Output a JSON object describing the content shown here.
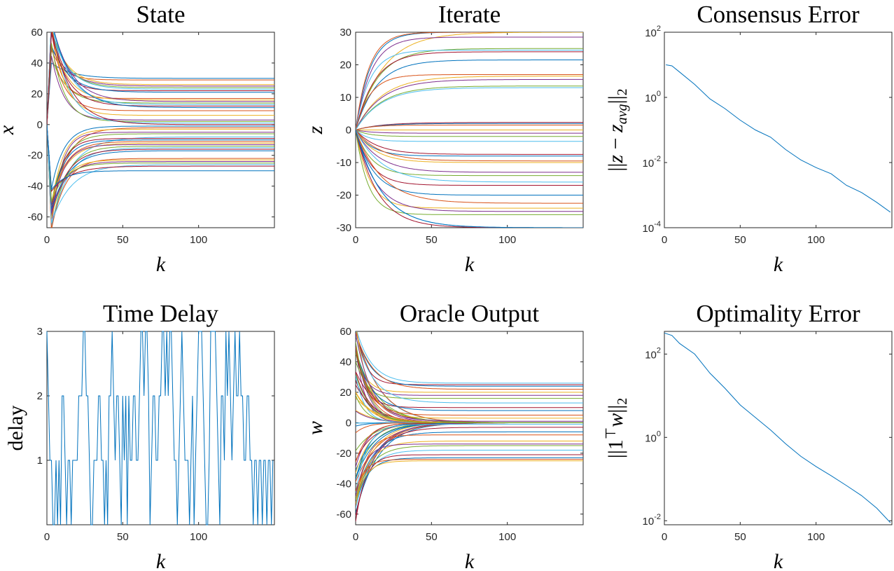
{
  "chart_data": [
    {
      "type": "line",
      "title": "State",
      "xlabel": "k",
      "ylabel": "x",
      "xlim": [
        0,
        150
      ],
      "ylim": [
        -67,
        60
      ],
      "xticks": [
        0,
        50,
        100
      ],
      "yticks": [
        -60,
        -40,
        -20,
        0,
        20,
        40,
        60
      ],
      "ytick_labels": [
        "-60",
        "-40",
        "-20",
        "0",
        "20",
        "40",
        "60"
      ],
      "xtick_labels": [
        "0",
        "50",
        "100"
      ],
      "scale": "linear",
      "x_range": [
        0,
        150
      ],
      "n_series": 60,
      "series_pattern": "trajectories start near 0, spike to ±60 within the first iterations, then settle to constant levels",
      "final_levels": [
        30,
        29,
        26,
        25,
        24,
        23,
        22,
        21,
        17,
        16,
        15,
        14,
        13,
        12,
        11,
        9,
        6,
        3,
        2,
        1,
        0,
        -1,
        -2,
        -3,
        -5,
        -6,
        -8,
        -9,
        -10,
        -11,
        -12,
        -13,
        -14,
        -15,
        -16,
        -17,
        -22,
        -23,
        -24,
        -25,
        -26,
        -27,
        -30
      ]
    },
    {
      "type": "line",
      "title": "Iterate",
      "xlabel": "k",
      "ylabel": "z",
      "xlim": [
        0,
        150
      ],
      "ylim": [
        -30,
        30
      ],
      "xticks": [
        0,
        50,
        100
      ],
      "yticks": [
        -30,
        -20,
        -10,
        0,
        10,
        20,
        30
      ],
      "ytick_labels": [
        "-30",
        "-20",
        "-10",
        "0",
        "10",
        "20",
        "30"
      ],
      "xtick_labels": [
        "0",
        "50",
        "100"
      ],
      "scale": "linear",
      "x_range": [
        0,
        150
      ],
      "series_pattern": "all series start at 0 and converge exponentially to constant levels",
      "final_levels": [
        30,
        30,
        30,
        28.5,
        25,
        24.5,
        24,
        21.5,
        17,
        16.5,
        15.5,
        13.5,
        13,
        2.3,
        2,
        1.5,
        0,
        -1,
        -2,
        -3.5,
        -7.5,
        -8,
        -9.5,
        -10,
        -13,
        -14,
        -16,
        -17,
        -20,
        -22.5,
        -24,
        -25,
        -26,
        -30,
        -30,
        -30
      ]
    },
    {
      "type": "line",
      "title": "Consensus Error",
      "xlabel": "k",
      "ylabel": "||z − z_avg||_2",
      "xlim": [
        0,
        150
      ],
      "ylim": [
        0.0001,
        100
      ],
      "scale": "log",
      "xticks": [
        0,
        50,
        100
      ],
      "xtick_labels": [
        "0",
        "50",
        "100"
      ],
      "ytick_labels": [
        {
          "base": "10",
          "exp": "-4"
        },
        {
          "base": "10",
          "exp": "-2"
        },
        {
          "base": "10",
          "exp": "0"
        },
        {
          "base": "10",
          "exp": "2"
        }
      ],
      "yticks": [
        0.0001,
        0.01,
        1,
        100
      ],
      "x": [
        1,
        5,
        10,
        20,
        30,
        40,
        50,
        60,
        70,
        80,
        90,
        100,
        110,
        120,
        130,
        140,
        149
      ],
      "y": [
        10,
        9.3,
        6,
        2.5,
        0.9,
        0.45,
        0.2,
        0.1,
        0.06,
        0.025,
        0.012,
        0.007,
        0.0045,
        0.002,
        0.0012,
        0.0006,
        0.0003
      ]
    },
    {
      "type": "line",
      "title": "Time Delay",
      "xlabel": "k",
      "ylabel": "delay",
      "xlim": [
        0,
        150
      ],
      "ylim": [
        0,
        3
      ],
      "yticks": [
        1,
        2,
        3
      ],
      "ytick_labels": [
        "1",
        "2",
        "3"
      ],
      "xticks": [
        0,
        50,
        100
      ],
      "xtick_labels": [
        "0",
        "50",
        "100"
      ],
      "scale": "linear",
      "x": [
        0,
        1,
        2,
        3,
        4,
        5,
        6,
        7,
        8,
        9,
        10,
        11,
        12,
        13,
        14,
        15,
        16,
        17,
        18,
        19,
        20,
        21,
        22,
        23,
        24,
        25,
        26,
        27,
        28,
        29,
        30,
        31,
        32,
        33,
        34,
        35,
        36,
        37,
        38,
        39,
        40,
        41,
        42,
        43,
        44,
        45,
        46,
        47,
        48,
        49,
        50,
        51,
        52,
        53,
        54,
        55,
        56,
        57,
        58,
        59,
        60,
        61,
        62,
        63,
        64,
        65,
        66,
        67,
        68,
        69,
        70,
        71,
        72,
        73,
        74,
        75,
        76,
        77,
        78,
        79,
        80,
        81,
        82,
        83,
        84,
        85,
        86,
        87,
        88,
        89,
        90,
        91,
        92,
        93,
        94,
        95,
        96,
        97,
        98,
        99,
        100,
        101,
        102,
        103,
        104,
        105,
        106,
        107,
        108,
        109,
        110,
        111,
        112,
        113,
        114,
        115,
        116,
        117,
        118,
        119,
        120,
        121,
        122,
        123,
        124,
        125,
        126,
        127,
        128,
        129,
        130,
        131,
        132,
        133,
        134,
        135,
        136,
        137,
        138,
        139,
        140,
        141,
        142,
        143,
        144,
        145,
        146,
        147,
        148,
        149
      ],
      "values": [
        3,
        2,
        1,
        1,
        0,
        0,
        1,
        0,
        1,
        0,
        2,
        2,
        1,
        0,
        1,
        1,
        0,
        1,
        1,
        1,
        1,
        2,
        2,
        2,
        3,
        3,
        2,
        2,
        1,
        0,
        0,
        1,
        1,
        1,
        2,
        2,
        1,
        1,
        0,
        1,
        0,
        2,
        2,
        3,
        2,
        1,
        2,
        2,
        1,
        0,
        2,
        1,
        2,
        0,
        2,
        1,
        1,
        2,
        2,
        1,
        1,
        2,
        3,
        3,
        2,
        3,
        3,
        2,
        0,
        1,
        2,
        2,
        1,
        1,
        2,
        2,
        3,
        3,
        2,
        3,
        2,
        3,
        3,
        2,
        1,
        1,
        0,
        1,
        2,
        3,
        2,
        1,
        1,
        1,
        0,
        1,
        2,
        0,
        1,
        2,
        3,
        3,
        3,
        2,
        1,
        0,
        0,
        1,
        3,
        3,
        3,
        3,
        2,
        1,
        0,
        2,
        2,
        1,
        3,
        2,
        3,
        2,
        1,
        2,
        3,
        2,
        2,
        3,
        2,
        2,
        1,
        1,
        2,
        2,
        1,
        1,
        0,
        1,
        1,
        0,
        1,
        1,
        0,
        1,
        1,
        0,
        1,
        1,
        0,
        1
      ]
    },
    {
      "type": "line",
      "title": "Oracle Output",
      "xlabel": "k",
      "ylabel": "w",
      "xlim": [
        0,
        150
      ],
      "ylim": [
        -67,
        60
      ],
      "xticks": [
        0,
        50,
        100
      ],
      "yticks": [
        -60,
        -40,
        -20,
        0,
        20,
        40,
        60
      ],
      "ytick_labels": [
        "-60",
        "-40",
        "-20",
        "0",
        "20",
        "40",
        "60"
      ],
      "xtick_labels": [
        "0",
        "50",
        "100"
      ],
      "scale": "linear",
      "x_range": [
        0,
        150
      ],
      "series_pattern": "two families: one set decays to 0, another set settles at constant offsets",
      "final_levels": [
        26,
        25,
        24,
        22,
        20,
        18,
        16,
        13,
        10,
        8,
        5,
        3,
        1,
        0,
        -1,
        -3,
        -6,
        -8,
        -12,
        -14,
        -15,
        -18,
        -21,
        -23,
        -24,
        -25
      ]
    },
    {
      "type": "line",
      "title": "Optimality Error",
      "xlabel": "k",
      "ylabel": "||1ᵀw||_2",
      "xlim": [
        0,
        150
      ],
      "ylim": [
        0.008,
        350
      ],
      "scale": "log",
      "xticks": [
        0,
        50,
        100
      ],
      "xtick_labels": [
        "0",
        "50",
        "100"
      ],
      "yticks": [
        0.01,
        1,
        100
      ],
      "ytick_labels": [
        {
          "base": "10",
          "exp": "-2"
        },
        {
          "base": "10",
          "exp": "0"
        },
        {
          "base": "10",
          "exp": "2"
        }
      ],
      "x": [
        0,
        5,
        10,
        20,
        30,
        40,
        50,
        60,
        70,
        80,
        90,
        100,
        110,
        120,
        130,
        140,
        149
      ],
      "y": [
        320,
        280,
        180,
        100,
        35,
        15,
        6,
        3,
        1.5,
        0.7,
        0.35,
        0.2,
        0.12,
        0.07,
        0.04,
        0.02,
        0.009
      ]
    }
  ]
}
